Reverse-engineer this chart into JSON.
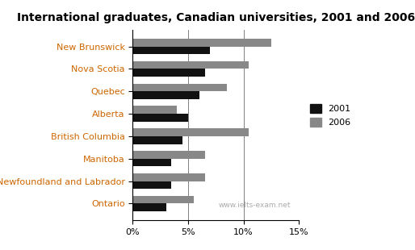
{
  "title": "International graduates, Canadian universities, 2001 and 2006",
  "provinces": [
    "New Brunswick",
    "Nova Scotia",
    "Quebec",
    "Alberta",
    "British Columbia",
    "Manitoba",
    "Newfoundland and Labrador",
    "Ontario"
  ],
  "values_2001": [
    7.0,
    6.5,
    6.0,
    5.0,
    4.5,
    3.5,
    3.5,
    3.0
  ],
  "values_2006": [
    12.5,
    10.5,
    8.5,
    4.0,
    10.5,
    6.5,
    6.5,
    5.5
  ],
  "color_2001": "#111111",
  "color_2006": "#888888",
  "xlim": [
    0,
    15
  ],
  "xticks": [
    0,
    5,
    10,
    15
  ],
  "xticklabels": [
    "0%",
    "5%",
    "10%",
    "15%"
  ],
  "legend_labels": [
    "2001",
    "2006"
  ],
  "watermark": "www.ielts-exam.net",
  "title_fontsize": 10,
  "label_fontsize": 8,
  "tick_fontsize": 8,
  "bar_height": 0.35,
  "title_color": "#000000",
  "ylabel_color": "#cc6600"
}
